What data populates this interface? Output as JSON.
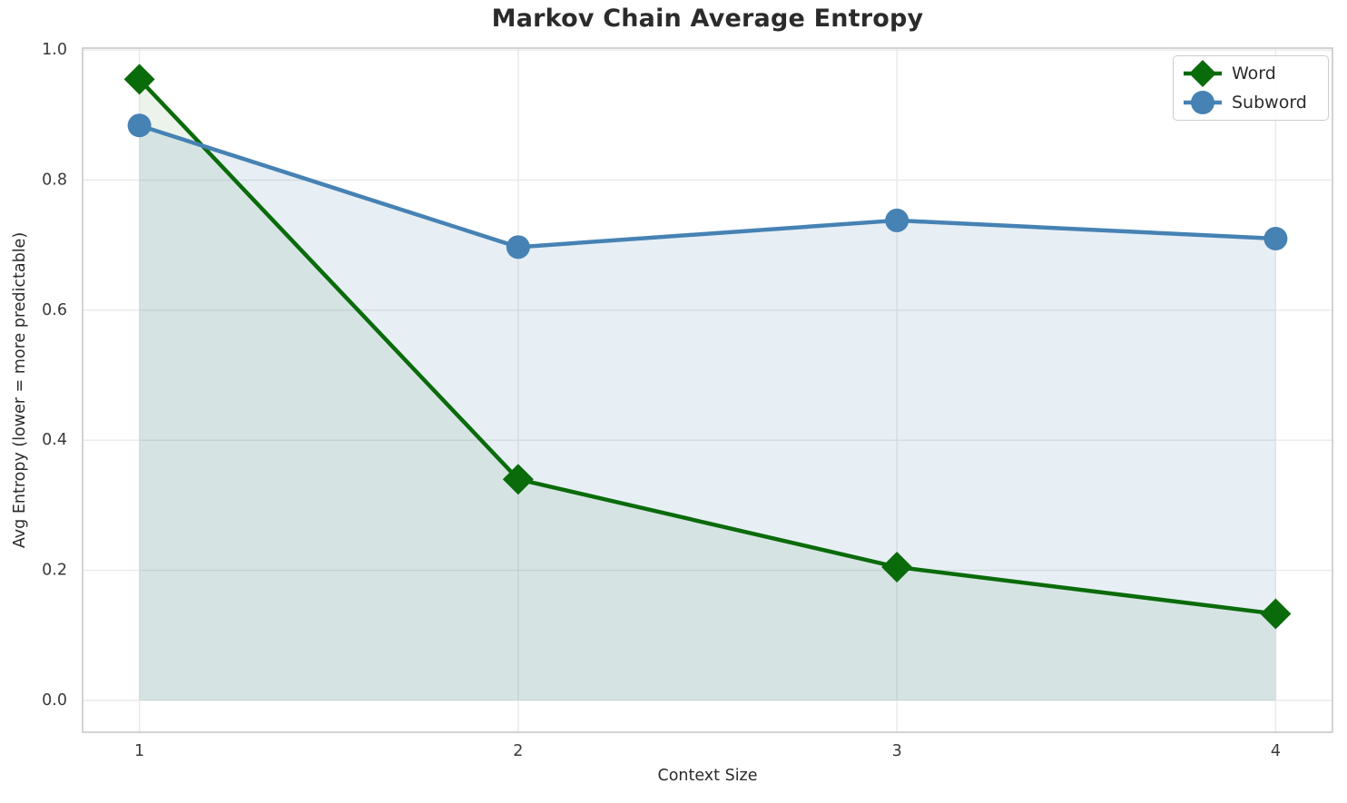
{
  "chart_data": {
    "type": "line",
    "title": "Markov Chain Average Entropy",
    "xlabel": "Context Size",
    "ylabel": "Avg Entropy (lower = more predictable)",
    "x": [
      1,
      2,
      3,
      4
    ],
    "xticks": [
      "1",
      "2",
      "3",
      "4"
    ],
    "yticks": [
      "0.0",
      "0.2",
      "0.4",
      "0.6",
      "0.8",
      "1.0"
    ],
    "ytick_values": [
      0.0,
      0.2,
      0.4,
      0.6,
      0.8,
      1.0
    ],
    "xlim": [
      0.85,
      4.15
    ],
    "ylim": [
      -0.049,
      1.003
    ],
    "grid": true,
    "legend_position": "upper right",
    "fill_to_zero": true,
    "series": [
      {
        "name": "Word",
        "marker": "diamond",
        "color": "#0a6b0a",
        "fill_color": "rgba(0,100,0,0.08)",
        "values": [
          0.955,
          0.34,
          0.205,
          0.133
        ]
      },
      {
        "name": "Subword",
        "marker": "circle",
        "color": "#4682b4",
        "fill_color": "rgba(70,130,180,0.13)",
        "values": [
          0.884,
          0.697,
          0.738,
          0.71
        ]
      }
    ],
    "colors": {
      "grid": "#e9e9e9",
      "spine": "#c8c8c8",
      "tick_label": "#3a3a3a",
      "title": "#2b2b2b"
    }
  }
}
